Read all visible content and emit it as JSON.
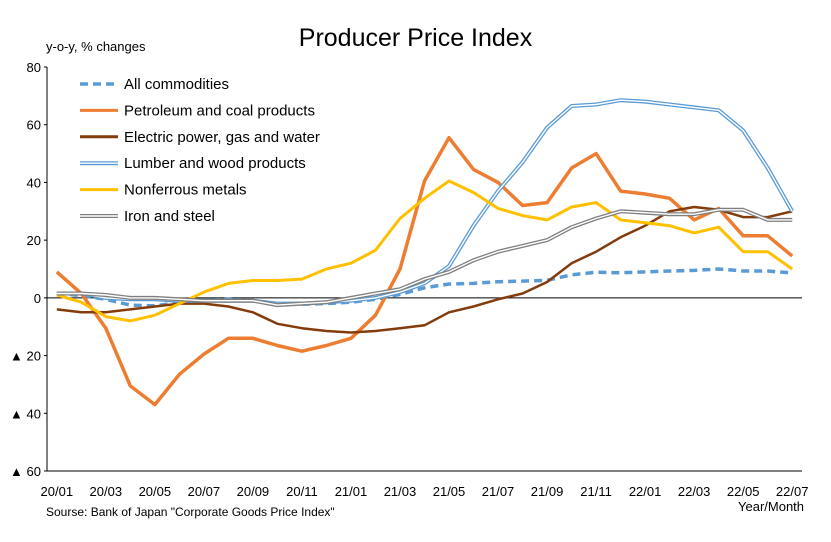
{
  "chart_data": {
    "type": "line",
    "title": "Producer Price Index",
    "ylabel": "y-o-y, % changes",
    "xlabel": "Year/Month",
    "source": "Sourse: Bank of Japan \"Corporate Goods Price Index\"",
    "ylim": [
      -60,
      80
    ],
    "yticks": [
      80,
      60,
      40,
      20,
      0,
      -20,
      -40,
      -60
    ],
    "ytick_labels": [
      "80",
      "60",
      "40",
      "20",
      "0",
      "▲ 20",
      "▲ 40",
      "▲ 60"
    ],
    "x": [
      "20/01",
      "20/02",
      "20/03",
      "20/04",
      "20/05",
      "20/06",
      "20/07",
      "20/08",
      "20/09",
      "20/10",
      "20/11",
      "20/12",
      "21/01",
      "21/02",
      "21/03",
      "21/04",
      "21/05",
      "21/06",
      "21/07",
      "21/08",
      "21/09",
      "21/10",
      "21/11",
      "21/12",
      "22/01",
      "22/02",
      "22/03",
      "22/04",
      "22/05",
      "22/06",
      "22/07"
    ],
    "xtick_labels": [
      "20/01",
      "20/03",
      "20/05",
      "20/07",
      "20/09",
      "20/11",
      "21/01",
      "21/03",
      "21/05",
      "21/07",
      "21/09",
      "21/11",
      "22/01",
      "22/03",
      "22/05",
      "22/07"
    ],
    "legend_position": "top-left",
    "series": [
      {
        "name": "All commodities",
        "color": "#5b9bd5",
        "style": "dashed",
        "values": [
          1.5,
          0.8,
          -0.5,
          -2.5,
          -2.8,
          -1.5,
          -1.0,
          -0.5,
          -1.0,
          -2.2,
          -2.2,
          -2.0,
          -1.5,
          -0.5,
          1.2,
          3.5,
          4.8,
          5.0,
          5.6,
          5.8,
          6.1,
          8.0,
          8.9,
          8.7,
          9.0,
          9.3,
          9.5,
          10.0,
          9.3,
          9.3,
          8.6
        ]
      },
      {
        "name": "Petroleum and coal products",
        "color": "#ed7d31",
        "style": "solid",
        "values": [
          9.0,
          1.5,
          -10.5,
          -30.5,
          -37.0,
          -26.5,
          -19.5,
          -14.0,
          -14.0,
          -16.5,
          -18.5,
          -16.5,
          -14.0,
          -6.0,
          10.0,
          40.5,
          55.5,
          44.5,
          40.0,
          32.0,
          33.0,
          45.0,
          50.0,
          37.0,
          36.0,
          34.5,
          27.0,
          31.0,
          21.5,
          21.5,
          14.5
        ]
      },
      {
        "name": "Electric power, gas and water",
        "color": "#843c0c",
        "style": "solid",
        "values": [
          -4.0,
          -5.0,
          -5.0,
          -4.0,
          -3.0,
          -2.0,
          -2.0,
          -3.0,
          -5.0,
          -9.0,
          -10.5,
          -11.5,
          -12.0,
          -11.5,
          -10.5,
          -9.5,
          -5.0,
          -3.0,
          -0.5,
          1.5,
          5.5,
          12.0,
          16.0,
          21.0,
          25.0,
          30.0,
          31.5,
          30.5,
          28.0,
          28.0,
          30.0
        ]
      },
      {
        "name": "Lumber and wood products",
        "color": "#5b9bd5",
        "style": "double",
        "values": [
          1.5,
          1.5,
          0.0,
          -0.5,
          -0.5,
          -1.0,
          -1.0,
          -1.0,
          -1.0,
          -2.0,
          -2.0,
          -1.5,
          -1.0,
          0.0,
          2.0,
          5.0,
          11.0,
          25.0,
          37.0,
          47.0,
          59.0,
          66.5,
          67.0,
          68.5,
          68.0,
          67.0,
          66.0,
          65.0,
          58.0,
          45.0,
          30.0
        ]
      },
      {
        "name": "Nonferrous metals",
        "color": "#ffc000",
        "style": "solid",
        "values": [
          1.0,
          -1.5,
          -6.5,
          -8.0,
          -6.0,
          -2.0,
          2.0,
          5.0,
          6.0,
          6.0,
          6.5,
          10.0,
          12.0,
          16.5,
          27.5,
          34.5,
          40.5,
          36.5,
          31.0,
          28.5,
          27.0,
          31.5,
          33.0,
          27.0,
          26.0,
          25.0,
          22.5,
          24.5,
          16.0,
          16.0,
          10.0
        ]
      },
      {
        "name": "Iron and steel",
        "color": "#7f7f7f",
        "style": "double",
        "values": [
          1.5,
          1.5,
          1.0,
          0.0,
          0.0,
          -0.5,
          -1.0,
          -1.0,
          -1.0,
          -2.5,
          -2.0,
          -1.5,
          0.0,
          1.5,
          3.0,
          6.5,
          9.0,
          13.0,
          16.0,
          18.0,
          20.0,
          24.5,
          27.5,
          30.0,
          29.5,
          29.0,
          29.0,
          30.5,
          30.5,
          27.0,
          27.0
        ]
      }
    ]
  }
}
